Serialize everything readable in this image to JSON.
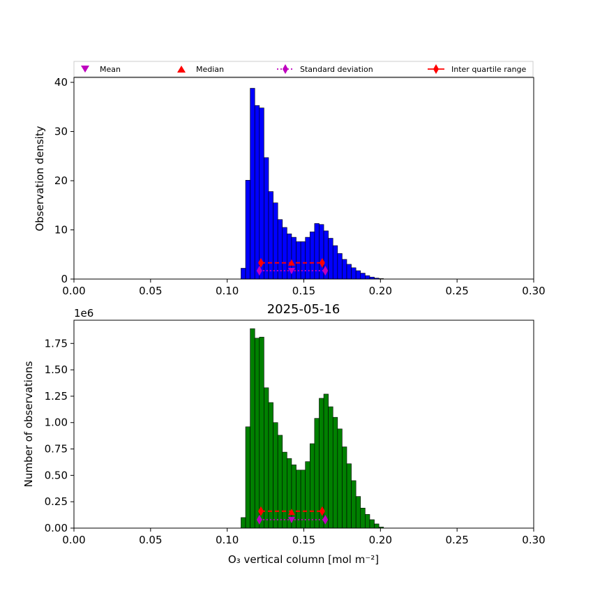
{
  "chart_data": [
    {
      "type": "bar",
      "title": "",
      "xlabel": "",
      "ylabel": "Observation density",
      "bar_color": "#0000ff",
      "xlim": [
        0.0,
        0.3
      ],
      "ylim": [
        0,
        41
      ],
      "x_ticks": [
        "0.00",
        "0.05",
        "0.10",
        "0.15",
        "0.20",
        "0.25",
        "0.30"
      ],
      "y_ticks": [
        "0",
        "10",
        "20",
        "30",
        "40"
      ],
      "bin_edges": [
        0.109,
        0.112,
        0.115,
        0.118,
        0.121,
        0.124,
        0.127,
        0.13,
        0.133,
        0.136,
        0.139,
        0.142,
        0.145,
        0.148,
        0.151,
        0.154,
        0.157,
        0.16,
        0.163,
        0.166,
        0.169,
        0.172,
        0.175,
        0.178,
        0.181,
        0.184,
        0.187,
        0.19,
        0.193,
        0.196,
        0.199,
        0.202
      ],
      "values": [
        2.2,
        20.1,
        38.8,
        35.3,
        34.8,
        24.7,
        17.8,
        15.5,
        12.1,
        10.5,
        9.2,
        8.5,
        7.6,
        7.6,
        8.5,
        9.6,
        11.3,
        11.1,
        9.8,
        8.3,
        6.8,
        5.2,
        4.0,
        3.0,
        2.3,
        1.7,
        1.2,
        0.7,
        0.4,
        0.2,
        0.1
      ],
      "stats": {
        "mean": {
          "x": 0.142,
          "y": 1.7
        },
        "median": {
          "x": 0.142,
          "y": 3.3
        },
        "std": {
          "x": [
            0.121,
            0.164
          ],
          "y": 1.7
        },
        "iqr": {
          "x": [
            0.122,
            0.162
          ],
          "y": 3.3
        }
      }
    },
    {
      "type": "bar",
      "title": "2025-05-16",
      "xlabel": "O₃ vertical column [mol m⁻²]",
      "ylabel": "Number of observations",
      "y_offset_label": "1e6",
      "bar_color": "#008000",
      "xlim": [
        0.0,
        0.3
      ],
      "ylim": [
        0,
        1.97
      ],
      "x_ticks": [
        "0.00",
        "0.05",
        "0.10",
        "0.15",
        "0.20",
        "0.25",
        "0.30"
      ],
      "y_ticks": [
        "0.00",
        "0.25",
        "0.50",
        "0.75",
        "1.00",
        "1.25",
        "1.50",
        "1.75"
      ],
      "bin_edges": [
        0.109,
        0.112,
        0.115,
        0.118,
        0.121,
        0.124,
        0.127,
        0.13,
        0.133,
        0.136,
        0.139,
        0.142,
        0.145,
        0.148,
        0.151,
        0.154,
        0.157,
        0.16,
        0.163,
        0.166,
        0.169,
        0.172,
        0.175,
        0.178,
        0.181,
        0.184,
        0.187,
        0.19,
        0.193,
        0.196,
        0.199,
        0.202
      ],
      "values": [
        0.1,
        0.96,
        1.89,
        1.8,
        1.81,
        1.33,
        1.19,
        1.0,
        0.88,
        0.72,
        0.66,
        0.6,
        0.55,
        0.55,
        0.63,
        0.8,
        1.04,
        1.23,
        1.27,
        1.15,
        1.05,
        0.94,
        0.77,
        0.61,
        0.45,
        0.3,
        0.19,
        0.13,
        0.08,
        0.04,
        0.01
      ],
      "stats": {
        "mean": {
          "x": 0.142,
          "y": 0.08
        },
        "median": {
          "x": 0.142,
          "y": 0.15
        },
        "std": {
          "x": [
            0.121,
            0.164
          ],
          "y": 0.08
        },
        "iqr": {
          "x": [
            0.122,
            0.162
          ],
          "y": 0.16
        }
      }
    }
  ],
  "legend": {
    "placement": "top",
    "entries": [
      {
        "label": "Mean",
        "marker": "triangle-down",
        "color": "#bf00bf"
      },
      {
        "label": "Median",
        "marker": "triangle-up",
        "color": "#ff0000"
      },
      {
        "label": "Standard deviation",
        "marker": "diamond-dotted-line",
        "color": "#bf00bf"
      },
      {
        "label": "Inter quartile range",
        "marker": "diamond-solid-line",
        "color": "#ff0000"
      }
    ]
  }
}
